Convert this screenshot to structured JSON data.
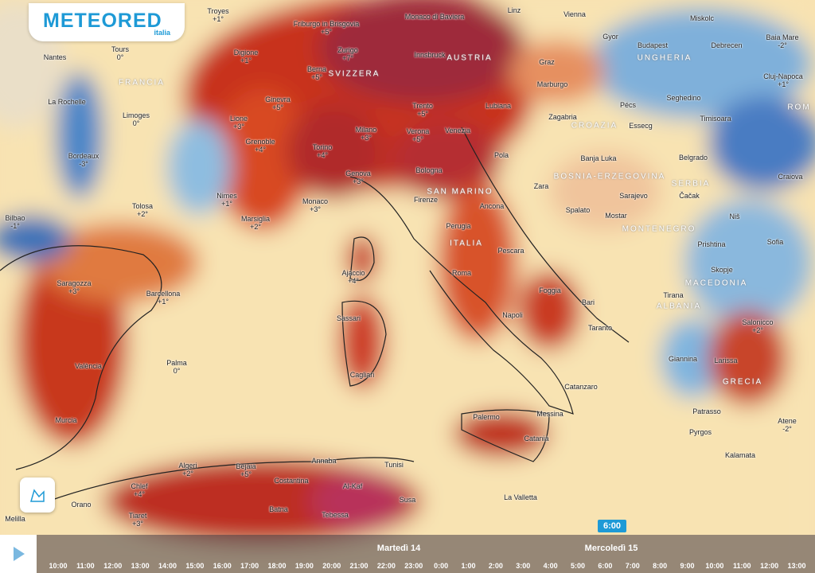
{
  "header": {
    "brand": "METEORED",
    "edition": "italia"
  },
  "map": {
    "places": [
      {
        "name": "Troyes",
        "temp": "+1°"
      },
      {
        "name": "Friburgo in Brisgovia",
        "temp": "+5°"
      },
      {
        "name": "Monaco di Baviera"
      },
      {
        "name": "Linz"
      },
      {
        "name": "Vienna"
      },
      {
        "name": "Miskolc"
      },
      {
        "name": "Gyor"
      },
      {
        "name": "Budapest"
      },
      {
        "name": "Debrecen"
      },
      {
        "name": "Baia Mare",
        "temp": "-2°"
      },
      {
        "name": "Nantes"
      },
      {
        "name": "Tours",
        "temp": "0°"
      },
      {
        "name": "Digione",
        "temp": "+1°"
      },
      {
        "name": "Zurigo",
        "temp": "+7°"
      },
      {
        "name": "Innsbruck"
      },
      {
        "name": "Graz"
      },
      {
        "name": "Berna",
        "temp": "+5°"
      },
      {
        "name": "Cluj-Napoca",
        "temp": "+1°"
      },
      {
        "name": "Marburgo"
      },
      {
        "name": "La Rochelle"
      },
      {
        "name": "Ginevra",
        "temp": "+5°"
      },
      {
        "name": "Trento",
        "temp": "+5°"
      },
      {
        "name": "Lubiana"
      },
      {
        "name": "Pécs"
      },
      {
        "name": "Seghedino"
      },
      {
        "name": "Limoges",
        "temp": "0°"
      },
      {
        "name": "Lione",
        "temp": "+3°"
      },
      {
        "name": "Milano",
        "temp": "+3°"
      },
      {
        "name": "Verona",
        "temp": "+5°"
      },
      {
        "name": "Venezia"
      },
      {
        "name": "Zagabria"
      },
      {
        "name": "Essecg"
      },
      {
        "name": "Timisoara"
      },
      {
        "name": "Grenoble",
        "temp": "+4°"
      },
      {
        "name": "Torino",
        "temp": "+4°"
      },
      {
        "name": "Bordeaux",
        "temp": "-3°"
      },
      {
        "name": "Pola"
      },
      {
        "name": "Banja Luka"
      },
      {
        "name": "Belgrado"
      },
      {
        "name": "Bologna"
      },
      {
        "name": "Genova",
        "temp": "+3°"
      },
      {
        "name": "Zara"
      },
      {
        "name": "Craiova"
      },
      {
        "name": "Nimes",
        "temp": "+1°"
      },
      {
        "name": "Firenze"
      },
      {
        "name": "Ancona"
      },
      {
        "name": "Spalato"
      },
      {
        "name": "Sarajevo"
      },
      {
        "name": "Čačak"
      },
      {
        "name": "Tolosa",
        "temp": "+2°"
      },
      {
        "name": "Monaco",
        "temp": "+3°"
      },
      {
        "name": "Marsiglia",
        "temp": "+2°"
      },
      {
        "name": "Mostar"
      },
      {
        "name": "Niš"
      },
      {
        "name": "Bilbao",
        "temp": "-1°"
      },
      {
        "name": "Prishtina"
      },
      {
        "name": "Sofia"
      },
      {
        "name": "Perugia"
      },
      {
        "name": "Pescara"
      },
      {
        "name": "Ajaccio",
        "temp": "+4°"
      },
      {
        "name": "Skopje"
      },
      {
        "name": "Roma"
      },
      {
        "name": "Saragozza",
        "temp": "+3°"
      },
      {
        "name": "Barcellona",
        "temp": "+1°"
      },
      {
        "name": "Foggia"
      },
      {
        "name": "Bari"
      },
      {
        "name": "Tirana"
      },
      {
        "name": "Sassari"
      },
      {
        "name": "Napoli"
      },
      {
        "name": "Taranto"
      },
      {
        "name": "Salonicco",
        "temp": "+2°"
      },
      {
        "name": "Palma",
        "temp": "0°"
      },
      {
        "name": "València"
      },
      {
        "name": "Giannina"
      },
      {
        "name": "Larissa"
      },
      {
        "name": "Cagliari"
      },
      {
        "name": "Catanzaro"
      },
      {
        "name": "Patrasso"
      },
      {
        "name": "Palermo"
      },
      {
        "name": "Messina"
      },
      {
        "name": "Murcia"
      },
      {
        "name": "Atene",
        "temp": "-2°"
      },
      {
        "name": "Catania"
      },
      {
        "name": "Pyrgos"
      },
      {
        "name": "Kalamata"
      },
      {
        "name": "Algeri",
        "temp": "+2°"
      },
      {
        "name": "Bejaia",
        "temp": "+5°"
      },
      {
        "name": "Annaba"
      },
      {
        "name": "Tunisi"
      },
      {
        "name": "Costantina"
      },
      {
        "name": "Al-Kaf"
      },
      {
        "name": "Chlef",
        "temp": "+4°"
      },
      {
        "name": "La Valletta"
      },
      {
        "name": "Susa"
      },
      {
        "name": "Batna"
      },
      {
        "name": "Orano"
      },
      {
        "name": "Tiaret",
        "temp": "+3°"
      },
      {
        "name": "Tebessa"
      },
      {
        "name": "Melilla"
      }
    ],
    "regions": [
      "AUSTRIA",
      "UNGHERIA",
      "FRANCIA",
      "SVIZZERA",
      "ROM",
      "CROAZIA",
      "BOSNIA-ERZEGOVINA",
      "SERBIA",
      "SAN MARINO",
      "MONTENEGRO",
      "ITALIA",
      "MACEDONIA",
      "ALBANIA",
      "GRECIA"
    ]
  },
  "timeline": {
    "days": [
      "Martedì 14",
      "Mercoledì 15"
    ],
    "selected": "6:00",
    "hours": [
      "10:00",
      "11:00",
      "12:00",
      "13:00",
      "14:00",
      "15:00",
      "16:00",
      "17:00",
      "18:00",
      "19:00",
      "20:00",
      "21:00",
      "22:00",
      "23:00",
      "0:00",
      "1:00",
      "2:00",
      "3:00",
      "4:00",
      "5:00",
      "6:00",
      "7:00",
      "8:00",
      "9:00",
      "10:00",
      "11:00",
      "12:00",
      "13:00"
    ]
  }
}
